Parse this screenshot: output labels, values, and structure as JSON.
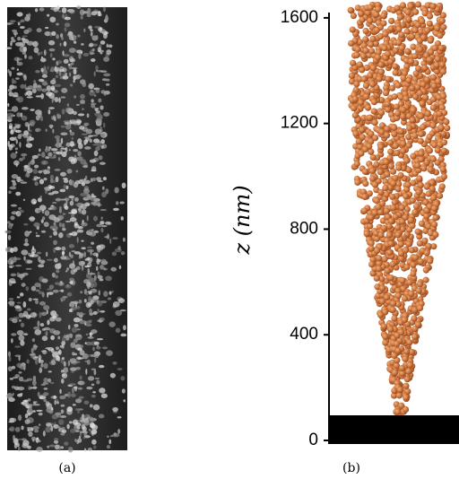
{
  "panels": [
    {
      "label": "(a)"
    },
    {
      "label": "(b)"
    }
  ],
  "chart_data": {
    "type": "particle-deposit",
    "y_label": "z (nm)",
    "ylim": [
      0,
      1620
    ],
    "yticks": [
      0,
      400,
      800,
      1200,
      1600
    ]
  }
}
